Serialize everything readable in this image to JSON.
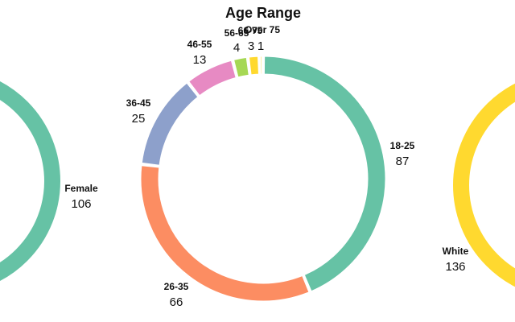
{
  "colors": {
    "teal": "#66c2a5",
    "orange": "#fc8d62",
    "blue": "#8da0cb",
    "pink": "#e78ac3",
    "green": "#a6d854",
    "yellow": "#ffd92f"
  },
  "chart_data": [
    {
      "type": "pie",
      "donut": true,
      "title": "",
      "categories": [
        "Female"
      ],
      "values": [
        106
      ],
      "colors": [
        "#66c2a5"
      ],
      "note": "partially visible at left edge"
    },
    {
      "type": "pie",
      "donut": true,
      "title": "Age Range",
      "categories": [
        "18-25",
        "26-35",
        "36-45",
        "46-55",
        "56-65",
        "66-75",
        "Over 75"
      ],
      "values": [
        87,
        66,
        25,
        13,
        4,
        3,
        1
      ],
      "colors": [
        "#66c2a5",
        "#fc8d62",
        "#8da0cb",
        "#e78ac3",
        "#a6d854",
        "#ffd92f",
        "#ffd92f"
      ]
    },
    {
      "type": "pie",
      "donut": true,
      "title": "",
      "categories": [
        "White"
      ],
      "values": [
        136
      ],
      "colors": [
        "#ffd92f"
      ],
      "note": "partially visible at right edge"
    }
  ]
}
